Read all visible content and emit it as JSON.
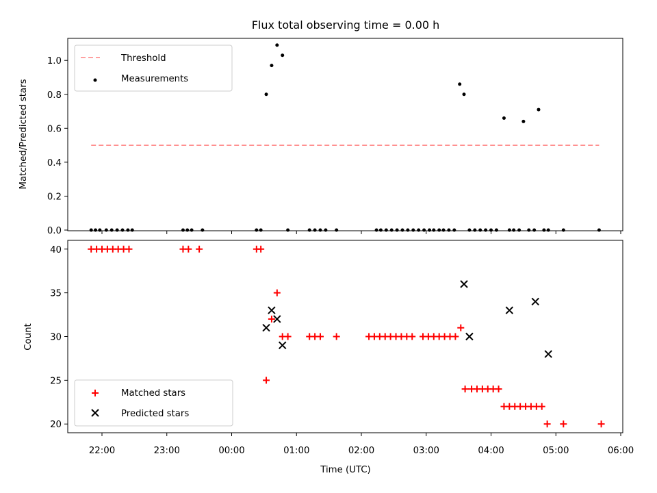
{
  "chart_data": [
    {
      "type": "scatter",
      "title": "Flux total observing time = 0.00 h",
      "ylabel": "Matched/Predicted stars",
      "xlabel": "",
      "ylim": [
        0,
        1.13
      ],
      "yticks": [
        "0.0",
        "0.2",
        "0.4",
        "0.6",
        "0.8",
        "1.0"
      ],
      "legend": {
        "position": "upper-left",
        "entries": [
          "Threshold",
          "Measurements"
        ]
      },
      "threshold": {
        "name": "Threshold",
        "value": 0.5,
        "color": "#ff8080",
        "x_start": "21:50",
        "x_end": "05:40"
      },
      "series": [
        {
          "name": "Measurements",
          "color": "#000000",
          "x": [
            "21:50",
            "21:54",
            "21:58",
            "22:04",
            "22:09",
            "22:14",
            "22:19",
            "22:24",
            "22:28",
            "23:15",
            "23:19",
            "23:23",
            "23:33",
            "00:23",
            "00:27",
            "00:32",
            "00:37",
            "00:42",
            "00:47",
            "00:52",
            "01:12",
            "01:17",
            "01:22",
            "01:27",
            "01:37",
            "02:14",
            "02:18",
            "02:23",
            "02:28",
            "02:33",
            "02:38",
            "02:43",
            "02:48",
            "02:53",
            "02:58",
            "03:03",
            "03:07",
            "03:12",
            "03:16",
            "03:21",
            "03:26",
            "03:31",
            "03:35",
            "03:40",
            "03:45",
            "03:50",
            "03:55",
            "04:00",
            "04:05",
            "04:12",
            "04:17",
            "04:21",
            "04:26",
            "04:30",
            "04:35",
            "04:40",
            "04:44",
            "04:49",
            "04:53",
            "05:07",
            "05:40"
          ],
          "y": [
            0,
            0,
            0,
            0,
            0,
            0,
            0,
            0,
            0,
            0,
            0,
            0,
            0,
            0,
            0,
            0.8,
            0.97,
            1.09,
            1.03,
            0,
            0,
            0,
            0,
            0,
            0,
            0,
            0,
            0,
            0,
            0,
            0,
            0,
            0,
            0,
            0,
            0,
            0,
            0,
            0,
            0,
            0,
            0.86,
            0.8,
            0,
            0,
            0,
            0,
            0,
            0,
            0.66,
            0,
            0,
            0,
            0.64,
            0,
            0,
            0.71,
            0,
            0,
            0,
            0
          ]
        }
      ]
    },
    {
      "type": "scatter",
      "title": "",
      "xlabel": "Time (UTC)",
      "ylabel": "Count",
      "ylim": [
        19,
        41
      ],
      "yticks": [
        "20",
        "25",
        "30",
        "35",
        "40"
      ],
      "xticks": [
        "22:00",
        "23:00",
        "00:00",
        "01:00",
        "02:00",
        "03:00",
        "04:00",
        "05:00",
        "06:00"
      ],
      "legend": {
        "position": "lower-left",
        "entries": [
          "Matched stars",
          "Predicted stars"
        ]
      },
      "series": [
        {
          "name": "Matched stars",
          "marker": "+",
          "color": "#ff0000",
          "x": [
            "21:50",
            "21:55",
            "22:00",
            "22:05",
            "22:10",
            "22:15",
            "22:20",
            "22:25",
            "23:15",
            "23:20",
            "23:30",
            "00:23",
            "00:27",
            "00:32",
            "00:37",
            "00:42",
            "00:47",
            "00:52",
            "01:12",
            "01:17",
            "01:22",
            "01:37",
            "02:07",
            "02:12",
            "02:17",
            "02:22",
            "02:27",
            "02:32",
            "02:37",
            "02:42",
            "02:47",
            "02:57",
            "03:02",
            "03:07",
            "03:12",
            "03:17",
            "03:22",
            "03:27",
            "03:32",
            "03:36",
            "03:42",
            "03:47",
            "03:52",
            "03:57",
            "04:02",
            "04:07",
            "04:12",
            "04:17",
            "04:22",
            "04:27",
            "04:32",
            "04:37",
            "04:42",
            "04:47",
            "04:52",
            "05:07",
            "05:42"
          ],
          "y": [
            40,
            40,
            40,
            40,
            40,
            40,
            40,
            40,
            40,
            40,
            40,
            40,
            40,
            25,
            32,
            35,
            30,
            30,
            30,
            30,
            30,
            30,
            30,
            30,
            30,
            30,
            30,
            30,
            30,
            30,
            30,
            30,
            30,
            30,
            30,
            30,
            30,
            30,
            31,
            24,
            24,
            24,
            24,
            24,
            24,
            24,
            22,
            22,
            22,
            22,
            22,
            22,
            22,
            22,
            20,
            20,
            20
          ]
        },
        {
          "name": "Predicted stars",
          "marker": "x",
          "color": "#000000",
          "x": [
            "00:32",
            "00:37",
            "00:42",
            "00:47",
            "03:35",
            "03:40",
            "04:17",
            "04:41",
            "04:53"
          ],
          "y": [
            31,
            33,
            32,
            29,
            36,
            30,
            33,
            34,
            28
          ]
        }
      ]
    }
  ]
}
